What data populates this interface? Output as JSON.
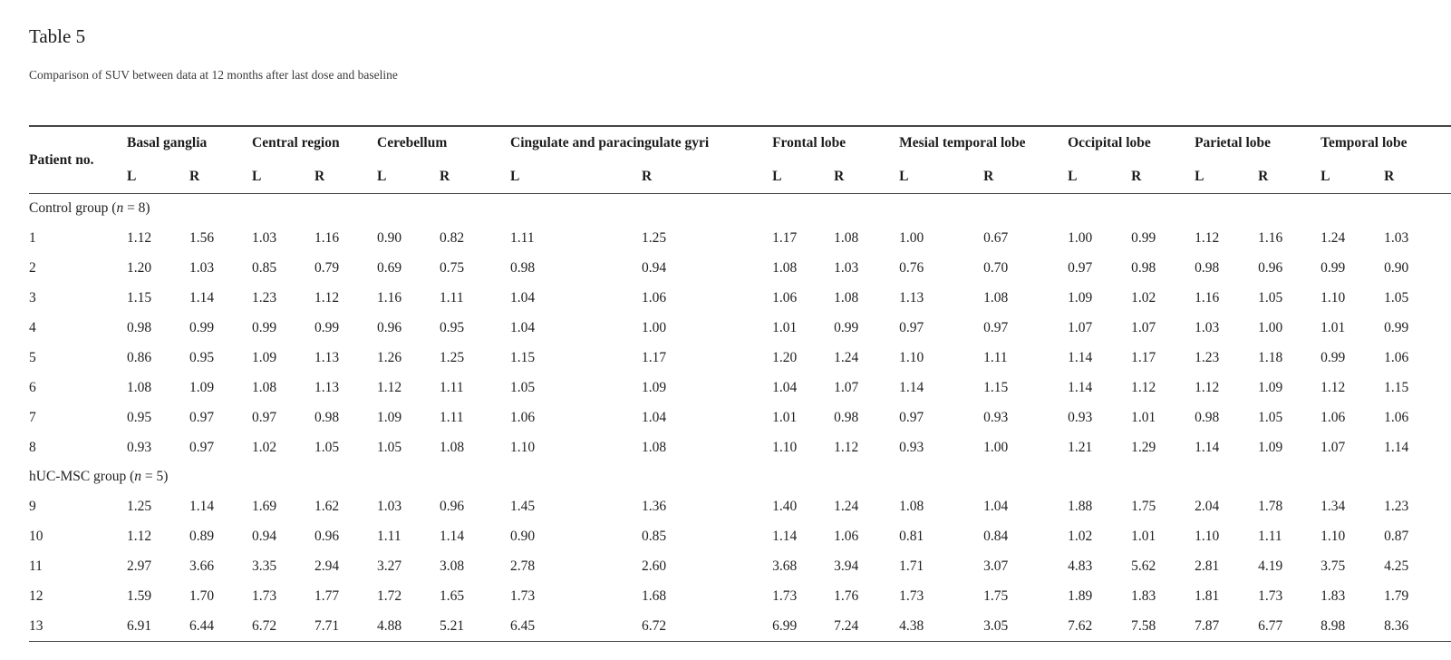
{
  "document": {
    "title": "Table 5",
    "caption": "Comparison of SUV between data at 12 months after last dose and baseline"
  },
  "table": {
    "patient_header": "Patient no.",
    "side_headers": [
      "L",
      "R"
    ],
    "regions": [
      "Basal ganglia",
      "Central region",
      "Cerebellum",
      "Cingulate and paracingulate gyri",
      "Frontal lobe",
      "Mesial temporal lobe",
      "Occipital lobe",
      "Parietal lobe",
      "Temporal lobe"
    ],
    "groups": [
      {
        "label": {
          "prefix": "Control group (",
          "var": "n",
          "suffix": " = 8)"
        },
        "rows": [
          {
            "patient": "1",
            "values": [
              "1.12",
              "1.56",
              "1.03",
              "1.16",
              "0.90",
              "0.82",
              "1.11",
              "1.25",
              "1.17",
              "1.08",
              "1.00",
              "0.67",
              "1.00",
              "0.99",
              "1.12",
              "1.16",
              "1.24",
              "1.03"
            ]
          },
          {
            "patient": "2",
            "values": [
              "1.20",
              "1.03",
              "0.85",
              "0.79",
              "0.69",
              "0.75",
              "0.98",
              "0.94",
              "1.08",
              "1.03",
              "0.76",
              "0.70",
              "0.97",
              "0.98",
              "0.98",
              "0.96",
              "0.99",
              "0.90"
            ]
          },
          {
            "patient": "3",
            "values": [
              "1.15",
              "1.14",
              "1.23",
              "1.12",
              "1.16",
              "1.11",
              "1.04",
              "1.06",
              "1.06",
              "1.08",
              "1.13",
              "1.08",
              "1.09",
              "1.02",
              "1.16",
              "1.05",
              "1.10",
              "1.05"
            ]
          },
          {
            "patient": "4",
            "values": [
              "0.98",
              "0.99",
              "0.99",
              "0.99",
              "0.96",
              "0.95",
              "1.04",
              "1.00",
              "1.01",
              "0.99",
              "0.97",
              "0.97",
              "1.07",
              "1.07",
              "1.03",
              "1.00",
              "1.01",
              "0.99"
            ]
          },
          {
            "patient": "5",
            "values": [
              "0.86",
              "0.95",
              "1.09",
              "1.13",
              "1.26",
              "1.25",
              "1.15",
              "1.17",
              "1.20",
              "1.24",
              "1.10",
              "1.11",
              "1.14",
              "1.17",
              "1.23",
              "1.18",
              "0.99",
              "1.06"
            ]
          },
          {
            "patient": "6",
            "values": [
              "1.08",
              "1.09",
              "1.08",
              "1.13",
              "1.12",
              "1.11",
              "1.05",
              "1.09",
              "1.04",
              "1.07",
              "1.14",
              "1.15",
              "1.14",
              "1.12",
              "1.12",
              "1.09",
              "1.12",
              "1.15"
            ]
          },
          {
            "patient": "7",
            "values": [
              "0.95",
              "0.97",
              "0.97",
              "0.98",
              "1.09",
              "1.11",
              "1.06",
              "1.04",
              "1.01",
              "0.98",
              "0.97",
              "0.93",
              "0.93",
              "1.01",
              "0.98",
              "1.05",
              "1.06",
              "1.06"
            ]
          },
          {
            "patient": "8",
            "values": [
              "0.93",
              "0.97",
              "1.02",
              "1.05",
              "1.05",
              "1.08",
              "1.10",
              "1.08",
              "1.10",
              "1.12",
              "0.93",
              "1.00",
              "1.21",
              "1.29",
              "1.14",
              "1.09",
              "1.07",
              "1.14"
            ]
          }
        ]
      },
      {
        "label": {
          "prefix": "hUC-MSC group (",
          "var": "n",
          "suffix": " = 5)"
        },
        "rows": [
          {
            "patient": "9",
            "values": [
              "1.25",
              "1.14",
              "1.69",
              "1.62",
              "1.03",
              "0.96",
              "1.45",
              "1.36",
              "1.40",
              "1.24",
              "1.08",
              "1.04",
              "1.88",
              "1.75",
              "2.04",
              "1.78",
              "1.34",
              "1.23"
            ]
          },
          {
            "patient": "10",
            "values": [
              "1.12",
              "0.89",
              "0.94",
              "0.96",
              "1.11",
              "1.14",
              "0.90",
              "0.85",
              "1.14",
              "1.06",
              "0.81",
              "0.84",
              "1.02",
              "1.01",
              "1.10",
              "1.11",
              "1.10",
              "0.87"
            ]
          },
          {
            "patient": "11",
            "values": [
              "2.97",
              "3.66",
              "3.35",
              "2.94",
              "3.27",
              "3.08",
              "2.78",
              "2.60",
              "3.68",
              "3.94",
              "1.71",
              "3.07",
              "4.83",
              "5.62",
              "2.81",
              "4.19",
              "3.75",
              "4.25"
            ]
          },
          {
            "patient": "12",
            "values": [
              "1.59",
              "1.70",
              "1.73",
              "1.77",
              "1.72",
              "1.65",
              "1.73",
              "1.68",
              "1.73",
              "1.76",
              "1.73",
              "1.75",
              "1.89",
              "1.83",
              "1.81",
              "1.73",
              "1.83",
              "1.79"
            ]
          },
          {
            "patient": "13",
            "values": [
              "6.91",
              "6.44",
              "6.72",
              "7.71",
              "4.88",
              "5.21",
              "6.45",
              "6.72",
              "6.99",
              "7.24",
              "4.38",
              "3.05",
              "7.62",
              "7.58",
              "7.87",
              "6.77",
              "8.98",
              "8.36"
            ]
          }
        ]
      }
    ]
  }
}
